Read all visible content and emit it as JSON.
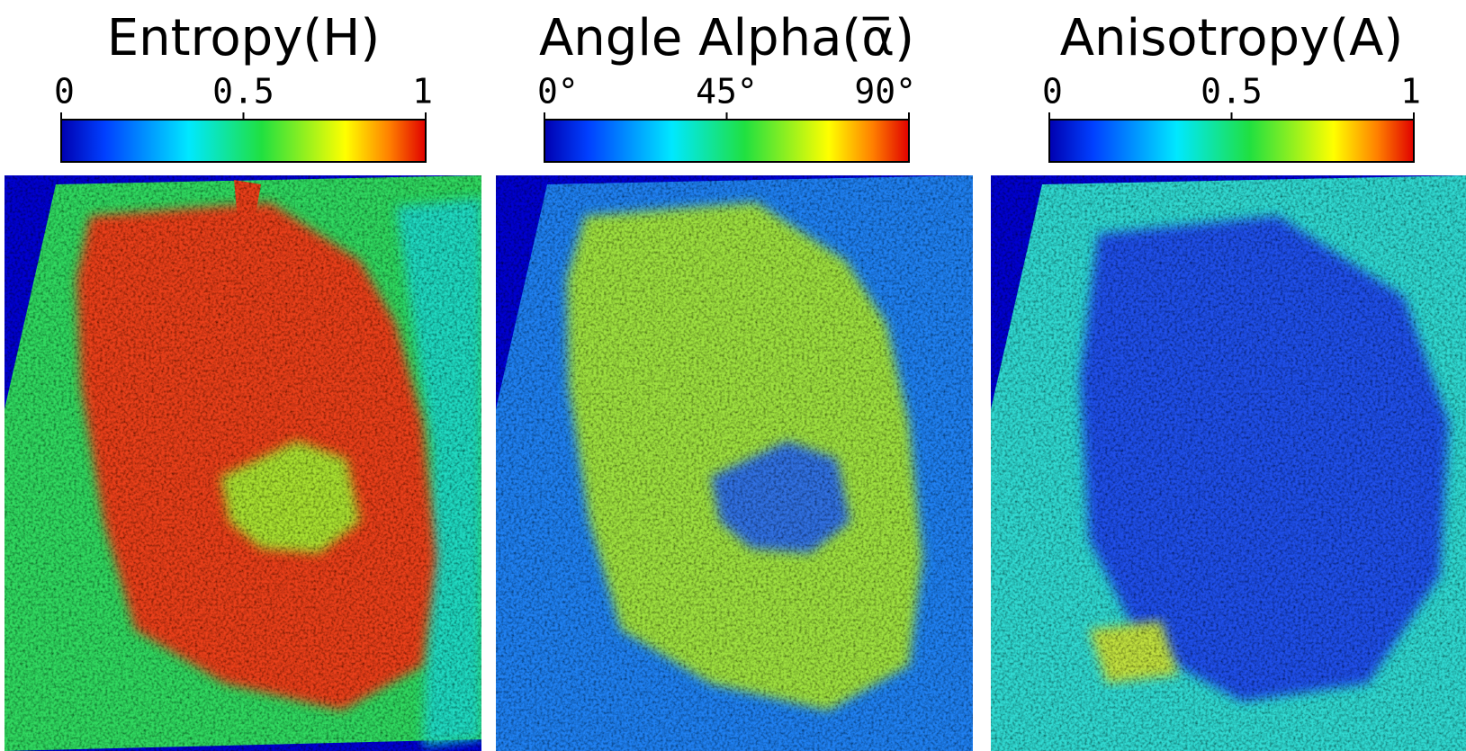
{
  "panels": [
    {
      "title": "Entropy(H)",
      "colorbar": {
        "lim": [
          0,
          1
        ],
        "ticks": [
          0,
          0.5,
          1
        ]
      }
    },
    {
      "title": "Angle Alpha(α̅)",
      "colorbar": {
        "lim": [
          0,
          90
        ],
        "ticks": [
          {
            "value": 0,
            "label": "0°"
          },
          {
            "value": 45,
            "label": "45°"
          },
          {
            "value": 90,
            "label": "90°"
          }
        ]
      }
    },
    {
      "title": "Anisotropy(A)",
      "colorbar": {
        "lim": [
          0,
          1
        ],
        "ticks": [
          0,
          0.5,
          1
        ]
      }
    }
  ]
}
